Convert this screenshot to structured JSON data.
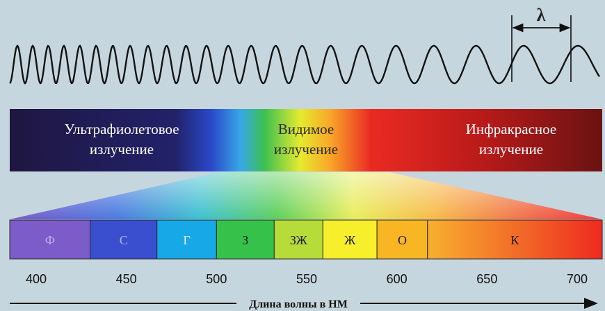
{
  "wave": {
    "lambda_symbol": "λ"
  },
  "spectrum_bar": {
    "regions": [
      {
        "line1": "Ультрафиолетовое",
        "line2": "излучение"
      },
      {
        "line1": "Видимое",
        "line2": "излучение"
      },
      {
        "line1": "Инфракрасное",
        "line2": "излучение"
      }
    ]
  },
  "visible_bands": [
    {
      "label": "Ф",
      "from_nm": 385,
      "to_nm": 430,
      "color": "#7b5cc8"
    },
    {
      "label": "С",
      "from_nm": 430,
      "to_nm": 467,
      "color": "#3a4fd0"
    },
    {
      "label": "Г",
      "from_nm": 467,
      "to_nm": 500,
      "color": "#17a8e8"
    },
    {
      "label": "З",
      "from_nm": 500,
      "to_nm": 532,
      "color": "#36c24a"
    },
    {
      "label": "ЗЖ",
      "from_nm": 532,
      "to_nm": 559,
      "color": "#b6dc3a"
    },
    {
      "label": "Ж",
      "from_nm": 559,
      "to_nm": 589,
      "color": "#f7ee2c"
    },
    {
      "label": "О",
      "from_nm": 589,
      "to_nm": 617,
      "color": "#f8b625"
    },
    {
      "label": "К",
      "from_nm": 617,
      "to_nm": 715,
      "color": "#f0452a"
    }
  ],
  "axis": {
    "ticks": [
      "400",
      "450",
      "500",
      "550",
      "600",
      "650",
      "700"
    ],
    "title": "Длина волны в НМ"
  }
}
